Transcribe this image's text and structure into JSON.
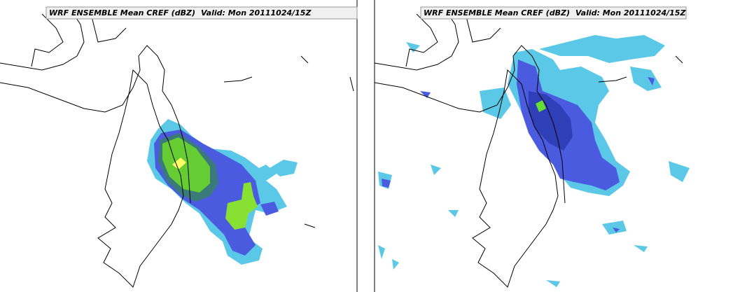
{
  "panels": [
    {
      "title": "WRF ENSEMBLE Mean CREF (dBZ)",
      "valid": "Valid: Mon 20111024/15Z"
    },
    {
      "title": "WRF ENSEMBLE Mean CREF (dBZ)",
      "valid": "Valid: Mon 20111024/15Z"
    }
  ]
}
